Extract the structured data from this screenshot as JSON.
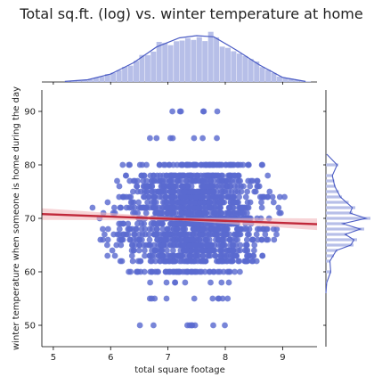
{
  "chart_data": {
    "type": "scatter",
    "title": "Total sq.ft. (log) vs. winter temperature at home",
    "xlabel": "total square footage",
    "ylabel": "winter temperature when someone is home during the day",
    "xlim": [
      4.8,
      9.6
    ],
    "ylim": [
      46,
      94
    ],
    "xticks": [
      5,
      6,
      7,
      8,
      9
    ],
    "yticks": [
      50,
      60,
      70,
      80,
      90
    ],
    "grid": false,
    "colors": {
      "points": "#5a6acf",
      "marginal_fill": "#b7bfe8",
      "kde_line": "#4a5bc4",
      "regression": "#c0283a",
      "regression_ci": "#f2b8bd"
    },
    "regression": {
      "x": [
        4.8,
        9.6
      ],
      "y": [
        70.8,
        68.9
      ]
    },
    "y_levels": [
      50,
      55,
      58,
      60,
      62,
      63,
      64,
      65,
      66,
      67,
      68,
      69,
      70,
      71,
      72,
      73,
      74,
      75,
      76,
      77,
      78,
      80,
      85,
      90
    ],
    "scatter_ranges": [
      {
        "y": 50,
        "x": [
          6.2,
          8.0
        ]
      },
      {
        "y": 55,
        "x": [
          6.3,
          8.3
        ]
      },
      {
        "y": 58,
        "x": [
          6.5,
          8.2
        ]
      },
      {
        "y": 60,
        "x": [
          6.2,
          8.3
        ]
      },
      {
        "y": 62,
        "x": [
          6.0,
          8.8
        ]
      },
      {
        "y": 63,
        "x": [
          5.9,
          8.7
        ]
      },
      {
        "y": 64,
        "x": [
          5.9,
          8.8
        ]
      },
      {
        "y": 65,
        "x": [
          5.7,
          8.9
        ]
      },
      {
        "y": 66,
        "x": [
          5.6,
          9.0
        ]
      },
      {
        "y": 67,
        "x": [
          5.6,
          9.1
        ]
      },
      {
        "y": 68,
        "x": [
          5.5,
          9.0
        ]
      },
      {
        "y": 69,
        "x": [
          5.6,
          9.1
        ]
      },
      {
        "y": 70,
        "x": [
          5.3,
          9.2
        ]
      },
      {
        "y": 71,
        "x": [
          5.6,
          9.0
        ]
      },
      {
        "y": 72,
        "x": [
          5.5,
          9.1
        ]
      },
      {
        "y": 73,
        "x": [
          5.7,
          9.0
        ]
      },
      {
        "y": 74,
        "x": [
          5.5,
          9.1
        ]
      },
      {
        "y": 75,
        "x": [
          5.8,
          8.9
        ]
      },
      {
        "y": 76,
        "x": [
          6.0,
          8.8
        ]
      },
      {
        "y": 77,
        "x": [
          6.1,
          8.6
        ]
      },
      {
        "y": 78,
        "x": [
          6.0,
          8.9
        ]
      },
      {
        "y": 80,
        "x": [
          6.1,
          8.8
        ]
      },
      {
        "y": 85,
        "x": [
          6.6,
          8.0
        ]
      },
      {
        "y": 90,
        "x": [
          6.9,
          8.1
        ]
      }
    ],
    "marginal_x": {
      "x": [
        5.2,
        5.6,
        6.0,
        6.4,
        6.8,
        7.2,
        7.5,
        7.8,
        8.2,
        8.6,
        9.0,
        9.4
      ],
      "density": [
        0.01,
        0.04,
        0.14,
        0.34,
        0.62,
        0.78,
        0.82,
        0.8,
        0.56,
        0.3,
        0.08,
        0.01
      ]
    },
    "marginal_y": {
      "y": [
        56,
        58,
        60,
        62,
        64,
        65,
        66,
        67,
        68,
        69,
        70,
        71,
        72,
        74,
        76,
        78,
        80,
        82
      ],
      "density": [
        0.0,
        0.02,
        0.12,
        0.1,
        0.26,
        0.62,
        0.7,
        0.48,
        0.86,
        0.42,
        1.0,
        0.6,
        0.66,
        0.36,
        0.22,
        0.16,
        0.28,
        0.02
      ]
    }
  }
}
